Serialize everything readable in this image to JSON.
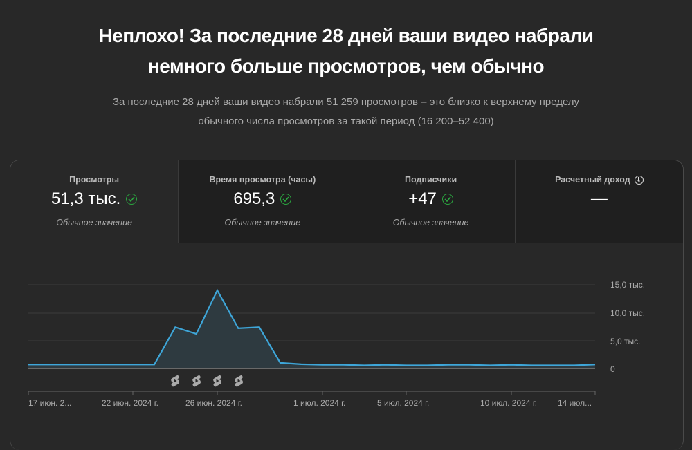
{
  "header": {
    "headline_line1": "Неплохо! За последние 28 дней ваши видео набрали",
    "headline_line2": "немного больше просмотров, чем обычно",
    "summary_line1": "За последние 28 дней ваши видео набрали 51 259 просмотров – это близко к верхнему пределу",
    "summary_line2": "обычного числа просмотров за такой период (16 200–52 400)"
  },
  "metrics": [
    {
      "title": "Просмотры",
      "value": "51,3 тыс.",
      "note": "Обычное значение",
      "icon": "check-circle-icon",
      "selected": true
    },
    {
      "title": "Время просмотра (часы)",
      "value": "695,3",
      "note": "Обычное значение",
      "icon": "check-circle-icon",
      "selected": false
    },
    {
      "title": "Подписчики",
      "value": "+47",
      "note": "Обычное значение",
      "icon": "check-circle-icon",
      "selected": false
    },
    {
      "title": "Расчетный доход",
      "value": "—",
      "note": "",
      "icon": "clock-icon",
      "selected": false
    }
  ],
  "colors": {
    "line": "#3ea6d9",
    "area": "#2e3a40",
    "check": "#2ba640",
    "background": "#282828"
  },
  "chart_data": {
    "type": "area",
    "title": "Просмотры",
    "x": [
      "17 июн.",
      "18 июн.",
      "19 июн.",
      "20 июн.",
      "21 июн.",
      "22 июн.",
      "23 июн.",
      "24 июн.",
      "25 июн.",
      "26 июн.",
      "27 июн.",
      "28 июн.",
      "29 июн.",
      "30 июн.",
      "1 июл.",
      "2 июл.",
      "3 июл.",
      "4 июл.",
      "5 июл.",
      "6 июл.",
      "7 июл.",
      "8 июл.",
      "9 июл.",
      "10 июл.",
      "11 июл.",
      "12 июл.",
      "13 июл.",
      "14 июл."
    ],
    "series": [
      {
        "name": "Просмотры",
        "values": [
          400,
          400,
          400,
          400,
          400,
          400,
          400,
          7400,
          6200,
          14000,
          7200,
          7400,
          700,
          450,
          350,
          350,
          250,
          350,
          250,
          250,
          350,
          350,
          250,
          350,
          250,
          250,
          250,
          400
        ]
      }
    ],
    "x_tick_labels": [
      "17 июн. 2...",
      "22 июн. 2024 г.",
      "26 июн. 2024 г.",
      "1 июл. 2024 г.",
      "5 июл. 2024 г.",
      "10 июл. 2024 г.",
      "14 июл..."
    ],
    "y_tick_labels": [
      "0",
      "5,0 тыс.",
      "10,0 тыс.",
      "15,0 тыс."
    ],
    "ylim": [
      0,
      16000
    ],
    "grid": true,
    "annotations": "Shorts icons under 24, 25, 26, 27 июн.",
    "shorts_markers": [
      "24 июн.",
      "25 июн.",
      "26 июн.",
      "27 июн."
    ]
  }
}
